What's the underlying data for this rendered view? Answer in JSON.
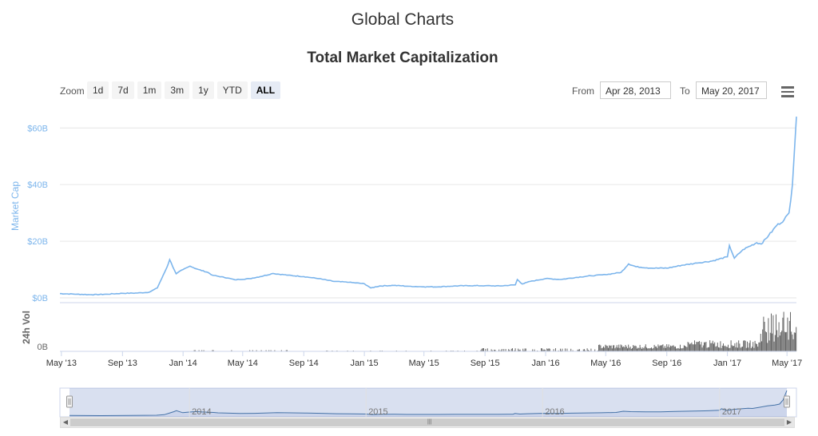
{
  "page": {
    "title": "Global Charts"
  },
  "toolbar": {
    "zoom_label": "Zoom",
    "zoom_buttons": [
      "1d",
      "7d",
      "1m",
      "3m",
      "1y",
      "YTD",
      "ALL"
    ],
    "active_zoom": "ALL",
    "from_label": "From",
    "from_value": "Apr 28, 2013",
    "to_label": "To",
    "to_value": "May 20, 2017",
    "menu_icon": "hamburger-menu-icon"
  },
  "navigator": {
    "year_labels": [
      "2014",
      "2015",
      "2016",
      "2017"
    ]
  },
  "chart_data": {
    "type": "line",
    "title": "Total Market Capitalization",
    "ylabel": "Market Cap",
    "y_ticks": [
      "$0B",
      "$20B",
      "$40B",
      "$60B"
    ],
    "ylim": [
      0,
      66
    ],
    "x_ticks": [
      "May '13",
      "Sep '13",
      "Jan '14",
      "May '14",
      "Sep '14",
      "Jan '15",
      "May '15",
      "Sep '15",
      "Jan '16",
      "May '16",
      "Sep '16",
      "Jan '17",
      "May '17"
    ],
    "xlim": [
      "2013-04-28",
      "2017-05-20"
    ],
    "series": [
      {
        "color": "#7cb5ec",
        "x": [
          "2013-04-28",
          "2013-06-01",
          "2013-07-01",
          "2013-08-01",
          "2013-09-01",
          "2013-10-01",
          "2013-10-25",
          "2013-11-10",
          "2013-11-22",
          "2013-11-30",
          "2013-12-05",
          "2013-12-18",
          "2014-01-01",
          "2014-01-15",
          "2014-02-01",
          "2014-02-20",
          "2014-03-01",
          "2014-04-01",
          "2014-04-15",
          "2014-05-15",
          "2014-06-05",
          "2014-07-01",
          "2014-08-01",
          "2014-09-01",
          "2014-10-01",
          "2014-11-01",
          "2014-12-01",
          "2015-01-01",
          "2015-01-14",
          "2015-02-01",
          "2015-03-01",
          "2015-04-01",
          "2015-05-01",
          "2015-06-01",
          "2015-07-01",
          "2015-08-01",
          "2015-09-01",
          "2015-10-01",
          "2015-11-01",
          "2015-11-05",
          "2015-11-15",
          "2015-12-01",
          "2016-01-01",
          "2016-02-01",
          "2016-03-01",
          "2016-04-01",
          "2016-05-01",
          "2016-06-01",
          "2016-06-16",
          "2016-07-01",
          "2016-08-01",
          "2016-09-01",
          "2016-10-01",
          "2016-11-01",
          "2016-12-01",
          "2017-01-01",
          "2017-01-05",
          "2017-01-15",
          "2017-02-01",
          "2017-03-01",
          "2017-03-10",
          "2017-03-25",
          "2017-04-10",
          "2017-04-25",
          "2017-05-05",
          "2017-05-12",
          "2017-05-16",
          "2017-05-20"
        ],
        "values": [
          1.5,
          1.3,
          1.1,
          1.3,
          1.6,
          1.7,
          2.0,
          3.5,
          8.0,
          11.0,
          13.5,
          8.5,
          10.0,
          11.2,
          10.0,
          9.0,
          8.0,
          7.0,
          6.4,
          6.8,
          7.5,
          8.6,
          8.0,
          7.5,
          6.8,
          5.8,
          5.5,
          5.0,
          3.5,
          4.2,
          4.4,
          4.1,
          3.9,
          3.9,
          4.2,
          4.3,
          4.3,
          4.2,
          4.6,
          6.5,
          4.9,
          5.8,
          6.8,
          6.5,
          7.2,
          7.8,
          8.2,
          9.0,
          12.0,
          11.0,
          10.5,
          10.5,
          11.5,
          12.3,
          13.0,
          14.5,
          18.5,
          14.0,
          17.0,
          19.5,
          19.0,
          22.0,
          25.5,
          27.5,
          30.0,
          40.0,
          52.0,
          64.0
        ]
      }
    ],
    "volume": {
      "name": "24h Vol",
      "y_ticks": [
        "0B"
      ],
      "color": "#666666"
    }
  }
}
